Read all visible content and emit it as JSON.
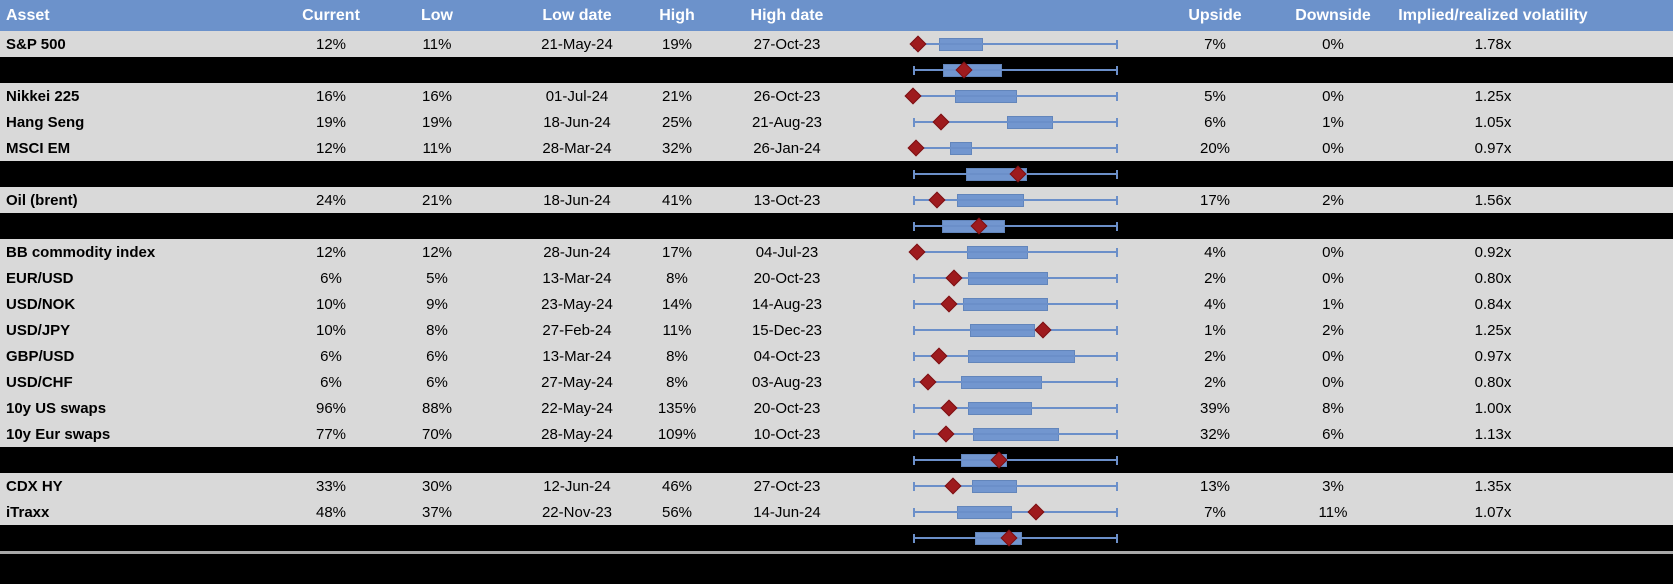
{
  "colors": {
    "header_bg": "#6C92CB",
    "header_text": "#FFFFFF",
    "row_bg": "#D9D9D9",
    "separator_bg": "#000000",
    "box_fill": "#7296CF",
    "box_border": "#6285BB",
    "whisker_line": "#6B8FC9",
    "marker_diamond": "#9E1B1E",
    "bottom_divider": "#A8A8A8"
  },
  "table": {
    "header": {
      "asset": "Asset",
      "current": "Current",
      "low": "Low",
      "low_date": "Low date",
      "high": "High",
      "high_date": "High date",
      "chart": "",
      "upside": "Upside",
      "downside": "Downside",
      "implied_realized": "Implied/realized volatility"
    },
    "rows": [
      {
        "kind": "data",
        "asset": "S&P 500",
        "current": "12%",
        "low": "11%",
        "low_date": "21-May-24",
        "high": "19%",
        "high_date": "27-Oct-23",
        "upside": "7%",
        "downside": "0%",
        "implied_realized": "1.78x",
        "plot": {
          "box_start": 12.7,
          "box_end": 34.2,
          "marker": 2.6
        }
      },
      {
        "kind": "separator",
        "plot": {
          "box_start": 14.8,
          "box_end": 43.6,
          "marker": 25.0
        }
      },
      {
        "kind": "data",
        "asset": "Nikkei 225",
        "current": "16%",
        "low": "16%",
        "low_date": "01-Jul-24",
        "high": "21%",
        "high_date": "26-Oct-23",
        "upside": "5%",
        "downside": "0%",
        "implied_realized": "1.25x",
        "plot": {
          "box_start": 20.5,
          "box_end": 50.6,
          "marker": 0.0
        }
      },
      {
        "kind": "data",
        "asset": "Hang Seng",
        "current": "19%",
        "low": "19%",
        "low_date": "18-Jun-24",
        "high": "25%",
        "high_date": "21-Aug-23",
        "upside": "6%",
        "downside": "1%",
        "implied_realized": "1.05x",
        "plot": {
          "box_start": 46.0,
          "box_end": 68.4,
          "marker": 13.5
        }
      },
      {
        "kind": "data",
        "asset": "MSCI EM",
        "current": "12%",
        "low": "11%",
        "low_date": "28-Mar-24",
        "high": "32%",
        "high_date": "26-Jan-24",
        "upside": "20%",
        "downside": "0%",
        "implied_realized": "0.97x",
        "plot": {
          "box_start": 18.0,
          "box_end": 28.9,
          "marker": 1.3
        }
      },
      {
        "kind": "separator",
        "plot": {
          "box_start": 25.7,
          "box_end": 55.5,
          "marker": 51.4
        }
      },
      {
        "kind": "data",
        "asset": "Oil (brent)",
        "current": "24%",
        "low": "21%",
        "low_date": "18-Jun-24",
        "high": "41%",
        "high_date": "13-Oct-23",
        "upside": "17%",
        "downside": "2%",
        "implied_realized": "1.56x",
        "plot": {
          "box_start": 21.6,
          "box_end": 54.1,
          "marker": 11.9
        }
      },
      {
        "kind": "separator",
        "plot": {
          "box_start": 14.3,
          "box_end": 44.9,
          "marker": 32.3
        }
      },
      {
        "kind": "data",
        "asset": "BB commodity index",
        "current": "12%",
        "low": "12%",
        "low_date": "28-Jun-24",
        "high": "17%",
        "high_date": "04-Jul-23",
        "upside": "4%",
        "downside": "0%",
        "implied_realized": "0.92x",
        "plot": {
          "box_start": 26.5,
          "box_end": 56.0,
          "marker": 1.8
        }
      },
      {
        "kind": "data",
        "asset": "EUR/USD",
        "current": "6%",
        "low": "5%",
        "low_date": "13-Mar-24",
        "high": "8%",
        "high_date": "20-Oct-23",
        "upside": "2%",
        "downside": "0%",
        "implied_realized": "0.80x",
        "plot": {
          "box_start": 26.7,
          "box_end": 66.0,
          "marker": 20.1
        }
      },
      {
        "kind": "data",
        "asset": "USD/NOK",
        "current": "10%",
        "low": "9%",
        "low_date": "23-May-24",
        "high": "14%",
        "high_date": "14-Aug-23",
        "upside": "4%",
        "downside": "1%",
        "implied_realized": "0.84x",
        "plot": {
          "box_start": 24.5,
          "box_end": 66.0,
          "marker": 17.6
        }
      },
      {
        "kind": "data",
        "asset": "USD/JPY",
        "current": "10%",
        "low": "8%",
        "low_date": "27-Feb-24",
        "high": "11%",
        "high_date": "15-Dec-23",
        "upside": "1%",
        "downside": "2%",
        "implied_realized": "1.25x",
        "plot": {
          "box_start": 27.8,
          "box_end": 59.5,
          "marker": 63.6
        }
      },
      {
        "kind": "data",
        "asset": "GBP/USD",
        "current": "6%",
        "low": "6%",
        "low_date": "13-Mar-24",
        "high": "8%",
        "high_date": "04-Oct-23",
        "upside": "2%",
        "downside": "0%",
        "implied_realized": "0.97x",
        "plot": {
          "box_start": 26.7,
          "box_end": 79.0,
          "marker": 12.7
        }
      },
      {
        "kind": "data",
        "asset": "USD/CHF",
        "current": "6%",
        "low": "6%",
        "low_date": "27-May-24",
        "high": "8%",
        "high_date": "03-Aug-23",
        "upside": "2%",
        "downside": "0%",
        "implied_realized": "0.80x",
        "plot": {
          "box_start": 23.4,
          "box_end": 62.8,
          "marker": 7.2
        }
      },
      {
        "kind": "data",
        "asset": "10y US swaps",
        "current": "96%",
        "low": "88%",
        "low_date": "22-May-24",
        "high": "135%",
        "high_date": "20-Oct-23",
        "upside": "39%",
        "downside": "8%",
        "implied_realized": "1.00x",
        "plot": {
          "box_start": 27.0,
          "box_end": 58.2,
          "marker": 17.7
        }
      },
      {
        "kind": "data",
        "asset": "10y Eur swaps",
        "current": "77%",
        "low": "70%",
        "low_date": "28-May-24",
        "high": "109%",
        "high_date": "10-Oct-23",
        "upside": "32%",
        "downside": "6%",
        "implied_realized": "1.13x",
        "plot": {
          "box_start": 29.1,
          "box_end": 71.4,
          "marker": 16.1
        }
      },
      {
        "kind": "separator",
        "plot": {
          "box_start": 23.3,
          "box_end": 45.7,
          "marker": 42.1
        }
      },
      {
        "kind": "data",
        "asset": "CDX HY",
        "current": "33%",
        "low": "30%",
        "low_date": "12-Jun-24",
        "high": "46%",
        "high_date": "27-Oct-23",
        "upside": "13%",
        "downside": "3%",
        "implied_realized": "1.35x",
        "plot": {
          "box_start": 28.6,
          "box_end": 50.6,
          "marker": 19.7
        }
      },
      {
        "kind": "data",
        "asset": "iTraxx",
        "current": "48%",
        "low": "37%",
        "low_date": "22-Nov-23",
        "high": "56%",
        "high_date": "14-Jun-24",
        "upside": "7%",
        "downside": "11%",
        "implied_realized": "1.07x",
        "plot": {
          "box_start": 21.6,
          "box_end": 48.1,
          "marker": 60.0
        }
      },
      {
        "kind": "separator",
        "plot": {
          "box_start": 30.2,
          "box_end": 53.0,
          "marker": 47.0
        }
      }
    ]
  },
  "chart_data": {
    "type": "boxplot",
    "orientation": "horizontal",
    "title": "",
    "xlabel": "",
    "ylabel": "",
    "track_range_pct": [
      0,
      100
    ],
    "legend": "per-row range plot: whiskers = full track 0-100%, blue box = box_pct span, red diamond = marker_pct (current level within low-high range)",
    "rows": [
      {
        "label": "S&P 500",
        "current_pct": 12,
        "low_pct": 11,
        "low_date": "21-May-24",
        "high_pct": 19,
        "high_date": "27-Oct-23",
        "upside_pct": 7,
        "downside_pct": 0,
        "implied_over_realized": 1.78,
        "box_pct": [
          12.7,
          34.2
        ],
        "marker_pct": 2.6
      },
      {
        "label": "",
        "row_type": "separator_boxplot",
        "box_pct": [
          14.8,
          43.6
        ],
        "marker_pct": 25.0
      },
      {
        "label": "Nikkei 225",
        "current_pct": 16,
        "low_pct": 16,
        "low_date": "01-Jul-24",
        "high_pct": 21,
        "high_date": "26-Oct-23",
        "upside_pct": 5,
        "downside_pct": 0,
        "implied_over_realized": 1.25,
        "box_pct": [
          20.5,
          50.6
        ],
        "marker_pct": 0.0
      },
      {
        "label": "Hang Seng",
        "current_pct": 19,
        "low_pct": 19,
        "low_date": "18-Jun-24",
        "high_pct": 25,
        "high_date": "21-Aug-23",
        "upside_pct": 6,
        "downside_pct": 1,
        "implied_over_realized": 1.05,
        "box_pct": [
          46.0,
          68.4
        ],
        "marker_pct": 13.5
      },
      {
        "label": "MSCI EM",
        "current_pct": 12,
        "low_pct": 11,
        "low_date": "28-Mar-24",
        "high_pct": 32,
        "high_date": "26-Jan-24",
        "upside_pct": 20,
        "downside_pct": 0,
        "implied_over_realized": 0.97,
        "box_pct": [
          18.0,
          28.9
        ],
        "marker_pct": 1.3
      },
      {
        "label": "",
        "row_type": "separator_boxplot",
        "box_pct": [
          25.7,
          55.5
        ],
        "marker_pct": 51.4
      },
      {
        "label": "Oil (brent)",
        "current_pct": 24,
        "low_pct": 21,
        "low_date": "18-Jun-24",
        "high_pct": 41,
        "high_date": "13-Oct-23",
        "upside_pct": 17,
        "downside_pct": 2,
        "implied_over_realized": 1.56,
        "box_pct": [
          21.6,
          54.1
        ],
        "marker_pct": 11.9
      },
      {
        "label": "",
        "row_type": "separator_boxplot",
        "box_pct": [
          14.3,
          44.9
        ],
        "marker_pct": 32.3
      },
      {
        "label": "BB commodity index",
        "current_pct": 12,
        "low_pct": 12,
        "low_date": "28-Jun-24",
        "high_pct": 17,
        "high_date": "04-Jul-23",
        "upside_pct": 4,
        "downside_pct": 0,
        "implied_over_realized": 0.92,
        "box_pct": [
          26.5,
          56.0
        ],
        "marker_pct": 1.8
      },
      {
        "label": "EUR/USD",
        "current_pct": 6,
        "low_pct": 5,
        "low_date": "13-Mar-24",
        "high_pct": 8,
        "high_date": "20-Oct-23",
        "upside_pct": 2,
        "downside_pct": 0,
        "implied_over_realized": 0.8,
        "box_pct": [
          26.7,
          66.0
        ],
        "marker_pct": 20.1
      },
      {
        "label": "USD/NOK",
        "current_pct": 10,
        "low_pct": 9,
        "low_date": "23-May-24",
        "high_pct": 14,
        "high_date": "14-Aug-23",
        "upside_pct": 4,
        "downside_pct": 1,
        "implied_over_realized": 0.84,
        "box_pct": [
          24.5,
          66.0
        ],
        "marker_pct": 17.6
      },
      {
        "label": "USD/JPY",
        "current_pct": 10,
        "low_pct": 8,
        "low_date": "27-Feb-24",
        "high_pct": 11,
        "high_date": "15-Dec-23",
        "upside_pct": 1,
        "downside_pct": 2,
        "implied_over_realized": 1.25,
        "box_pct": [
          27.8,
          59.5
        ],
        "marker_pct": 63.6
      },
      {
        "label": "GBP/USD",
        "current_pct": 6,
        "low_pct": 6,
        "low_date": "13-Mar-24",
        "high_pct": 8,
        "high_date": "04-Oct-23",
        "upside_pct": 2,
        "downside_pct": 0,
        "implied_over_realized": 0.97,
        "box_pct": [
          26.7,
          79.0
        ],
        "marker_pct": 12.7
      },
      {
        "label": "USD/CHF",
        "current_pct": 6,
        "low_pct": 6,
        "low_date": "27-May-24",
        "high_pct": 8,
        "high_date": "03-Aug-23",
        "upside_pct": 2,
        "downside_pct": 0,
        "implied_over_realized": 0.8,
        "box_pct": [
          23.4,
          62.8
        ],
        "marker_pct": 7.2
      },
      {
        "label": "10y US swaps",
        "current_pct": 96,
        "low_pct": 88,
        "low_date": "22-May-24",
        "high_pct": 135,
        "high_date": "20-Oct-23",
        "upside_pct": 39,
        "downside_pct": 8,
        "implied_over_realized": 1.0,
        "box_pct": [
          27.0,
          58.2
        ],
        "marker_pct": 17.7
      },
      {
        "label": "10y Eur swaps",
        "current_pct": 77,
        "low_pct": 70,
        "low_date": "28-May-24",
        "high_pct": 109,
        "high_date": "10-Oct-23",
        "upside_pct": 32,
        "downside_pct": 6,
        "implied_over_realized": 1.13,
        "box_pct": [
          29.1,
          71.4
        ],
        "marker_pct": 16.1
      },
      {
        "label": "",
        "row_type": "separator_boxplot",
        "box_pct": [
          23.3,
          45.7
        ],
        "marker_pct": 42.1
      },
      {
        "label": "CDX HY",
        "current_pct": 33,
        "low_pct": 30,
        "low_date": "12-Jun-24",
        "high_pct": 46,
        "high_date": "27-Oct-23",
        "upside_pct": 13,
        "downside_pct": 3,
        "implied_over_realized": 1.35,
        "box_pct": [
          28.6,
          50.6
        ],
        "marker_pct": 19.7
      },
      {
        "label": "iTraxx",
        "current_pct": 48,
        "low_pct": 37,
        "low_date": "22-Nov-23",
        "high_pct": 56,
        "high_date": "14-Jun-24",
        "upside_pct": 7,
        "downside_pct": 11,
        "implied_over_realized": 1.07,
        "box_pct": [
          21.6,
          48.1
        ],
        "marker_pct": 60.0
      },
      {
        "label": "",
        "row_type": "separator_boxplot",
        "box_pct": [
          30.2,
          53.0
        ],
        "marker_pct": 47.0
      }
    ]
  }
}
